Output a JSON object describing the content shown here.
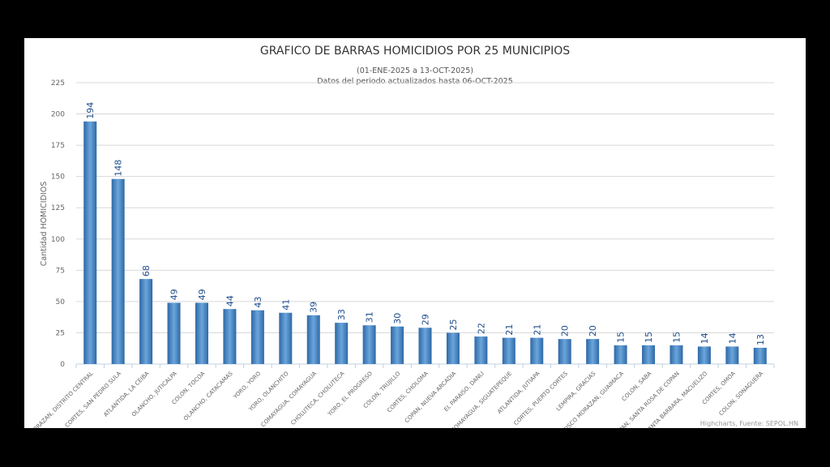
{
  "chart_data": {
    "type": "bar",
    "title": "GRAFICO DE BARRAS HOMICIDIOS POR 25 MUNICIPIOS",
    "subtitle_line1": "(01-ENE-2025 a 13-OCT-2025)",
    "subtitle_line2": "Datos del periodo actualizados hasta 06-OCT-2025",
    "ylabel": "Cantidad HOMICIDIOS",
    "xlabel": "",
    "ylim": [
      0,
      225
    ],
    "yticks": [
      0,
      25,
      50,
      75,
      100,
      125,
      150,
      175,
      200,
      225
    ],
    "grid": true,
    "credits": "Highcharts, Fuente: SEPOL.HN",
    "bar_color": "#3c7ab8",
    "label_color": "#1f4e8c",
    "categories": [
      "FRANCISCO MORAZAN, DISTRITO CENTRAL",
      "CORTES, SAN PEDRO SULA",
      "ATLANTIDA, LA CEIBA",
      "OLANCHO, JUTICALPA",
      "COLON, TOCOA",
      "OLANCHO, CATACAMAS",
      "YORO, YORO",
      "YORO, OLANCHITO",
      "COMAYAGUA, COMAYAGUA",
      "CHOLUTECA, CHOLUTECA",
      "YORO, EL PROGRESO",
      "COLON, TRUJILLO",
      "CORTES, CHOLOMA",
      "COPAN, NUEVA ARCADIA",
      "EL PARAISO, DANLI",
      "COMAYAGUA, SIGUATEPEQUE",
      "ATLANTIDA, JUTIAPA",
      "CORTES, PUERTO CORTES",
      "LEMPIRA, GRACIAS",
      "FRANCISCO MORAZAN, GUAIMACA",
      "COLON, SABA",
      "COPAN, SANTA ROSA DE COPAN",
      "SANTA BARBARA, MACUELIZO",
      "CORTES, OMOA",
      "COLON, SONAGUERA"
    ],
    "values": [
      194,
      148,
      68,
      49,
      49,
      44,
      43,
      41,
      39,
      33,
      31,
      30,
      29,
      25,
      22,
      21,
      21,
      20,
      20,
      15,
      15,
      15,
      14,
      14,
      13
    ]
  }
}
